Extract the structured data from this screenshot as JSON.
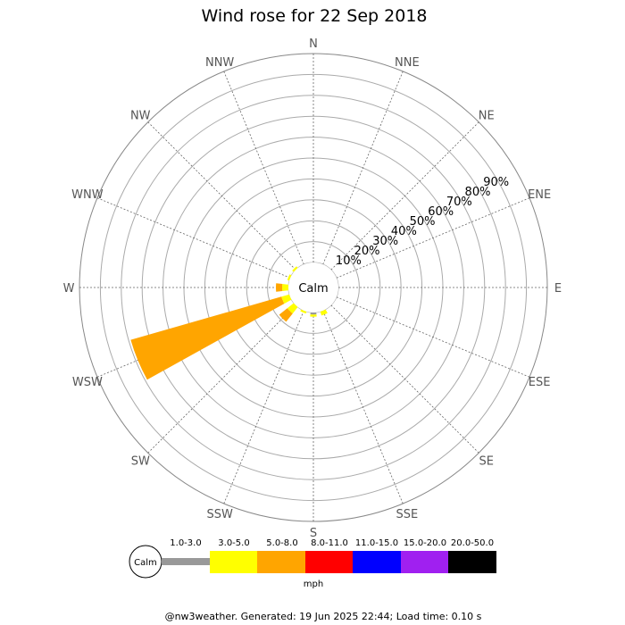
{
  "chart_data": {
    "type": "wind-rose",
    "title": "Wind rose for 22 Sep 2018",
    "directions": [
      "N",
      "NNE",
      "NE",
      "ENE",
      "E",
      "ESE",
      "SE",
      "SSE",
      "S",
      "SSW",
      "SW",
      "WSW",
      "W",
      "WNW",
      "NW",
      "NNW"
    ],
    "radial_ticks": [
      "10%",
      "20%",
      "30%",
      "40%",
      "50%",
      "60%",
      "70%",
      "80%",
      "90%"
    ],
    "radial_max_percent": 100,
    "calm_label": "Calm",
    "speed_bins": [
      {
        "label": "1.0-3.0",
        "color": "#999999"
      },
      {
        "label": "3.0-5.0",
        "color": "#ffff00"
      },
      {
        "label": "5.0-8.0",
        "color": "#ffa500"
      },
      {
        "label": "8.0-11.0",
        "color": "#ff0000"
      },
      {
        "label": "11.0-15.0",
        "color": "#0000ff"
      },
      {
        "label": "15.0-20.0",
        "color": "#a020f0"
      },
      {
        "label": "20.0-50.0",
        "color": "#000000"
      }
    ],
    "unit": "mph",
    "series": [
      {
        "direction": "NW",
        "values": [
          0,
          1,
          0,
          0,
          0,
          0,
          0
        ]
      },
      {
        "direction": "WNW",
        "values": [
          0,
          1,
          0,
          0,
          0,
          0,
          0
        ]
      },
      {
        "direction": "W",
        "values": [
          0,
          3,
          3,
          0,
          0,
          0,
          0
        ]
      },
      {
        "direction": "WSW",
        "values": [
          0,
          4,
          75,
          0,
          0,
          0,
          0
        ]
      },
      {
        "direction": "SW",
        "values": [
          0,
          4,
          5,
          0,
          0,
          0,
          0
        ]
      },
      {
        "direction": "SSW",
        "values": [
          0,
          1,
          0,
          0,
          0,
          0,
          0
        ]
      },
      {
        "direction": "S",
        "values": [
          1,
          1,
          0,
          0,
          0,
          0,
          0
        ]
      },
      {
        "direction": "SSE",
        "values": [
          0,
          2,
          0,
          0,
          0,
          0,
          0
        ]
      }
    ]
  },
  "footer": "@nw3weather. Generated: 19 Jun 2025 22:44; Load time: 0.10 s"
}
